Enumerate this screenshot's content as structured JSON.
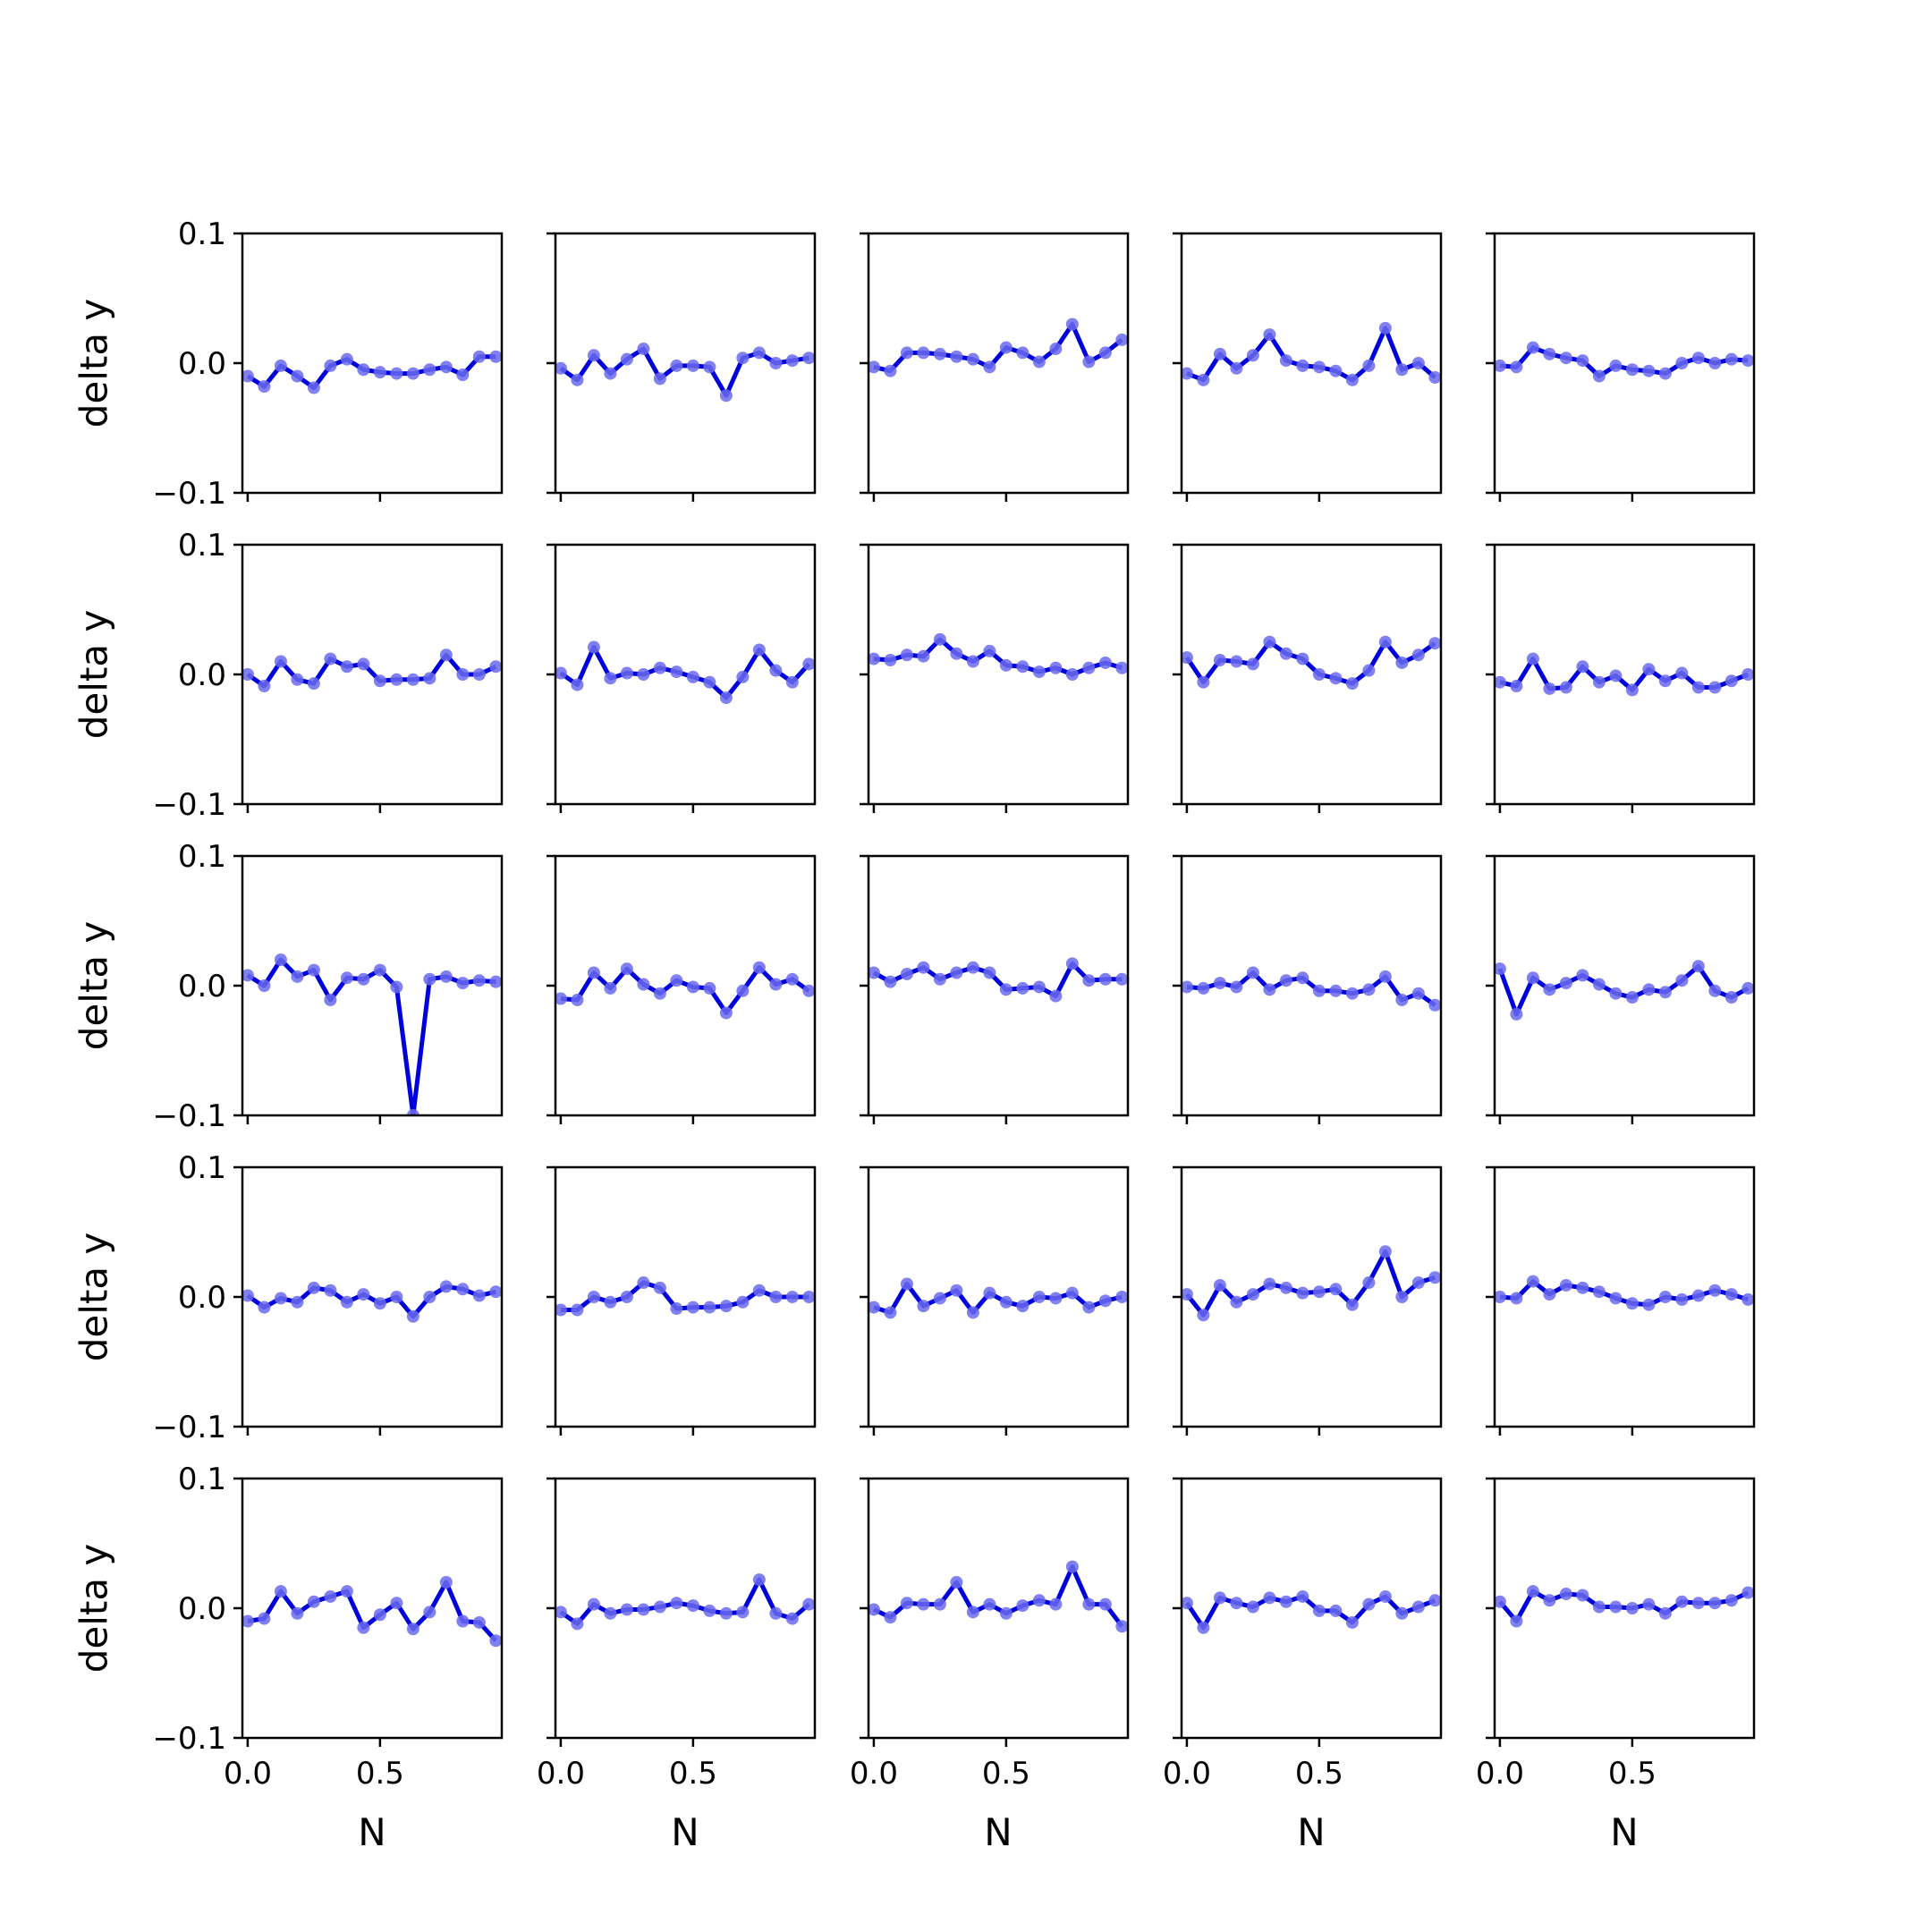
{
  "chart_data": {
    "type": "line",
    "layout": "5x5 grid of small multiples",
    "xlabel": "N",
    "ylabel": "delta y",
    "xlim": [
      -0.02,
      0.96
    ],
    "ylim": [
      -0.1,
      0.1
    ],
    "xticks": [
      0.0,
      0.5
    ],
    "xtick_labels": [
      "0.0",
      "0.5"
    ],
    "yticks": [
      -0.1,
      0.0,
      0.1
    ],
    "ytick_labels": [
      "−0.1",
      "0.0",
      "0.1"
    ],
    "grid": false,
    "line_color": "#0000dd",
    "marker_color": "#6a6aee",
    "x": [
      0.0,
      0.0625,
      0.125,
      0.1875,
      0.25,
      0.3125,
      0.375,
      0.4375,
      0.5,
      0.5625,
      0.625,
      0.6875,
      0.75,
      0.8125,
      0.875,
      0.9375
    ],
    "panels": [
      [
        -0.01,
        -0.018,
        -0.002,
        -0.01,
        -0.019,
        -0.002,
        0.003,
        -0.005,
        -0.007,
        -0.008,
        -0.008,
        -0.005,
        -0.003,
        -0.009,
        0.005,
        0.005
      ],
      [
        -0.004,
        -0.013,
        0.006,
        -0.008,
        0.003,
        0.011,
        -0.012,
        -0.002,
        -0.002,
        -0.003,
        -0.025,
        0.004,
        0.008,
        0.0,
        0.002,
        0.004
      ],
      [
        -0.003,
        -0.006,
        0.008,
        0.008,
        0.007,
        0.005,
        0.003,
        -0.003,
        0.012,
        0.008,
        0.001,
        0.011,
        0.03,
        0.001,
        0.008,
        0.018
      ],
      [
        -0.008,
        -0.013,
        0.007,
        -0.004,
        0.006,
        0.022,
        0.002,
        -0.002,
        -0.003,
        -0.006,
        -0.013,
        -0.002,
        0.027,
        -0.005,
        0.0,
        -0.011
      ],
      [
        -0.002,
        -0.003,
        0.012,
        0.007,
        0.004,
        0.002,
        -0.01,
        -0.002,
        -0.005,
        -0.006,
        -0.008,
        0.0,
        0.004,
        0.0,
        0.003,
        0.002
      ],
      [
        0.0,
        -0.009,
        0.01,
        -0.004,
        -0.007,
        0.012,
        0.006,
        0.008,
        -0.005,
        -0.004,
        -0.004,
        -0.003,
        0.015,
        0.0,
        0.0,
        0.006
      ],
      [
        0.001,
        -0.008,
        0.021,
        -0.003,
        0.001,
        0.0,
        0.005,
        0.002,
        -0.002,
        -0.006,
        -0.018,
        -0.002,
        0.019,
        0.003,
        -0.006,
        0.008
      ],
      [
        0.012,
        0.011,
        0.015,
        0.014,
        0.027,
        0.016,
        0.01,
        0.018,
        0.007,
        0.006,
        0.002,
        0.005,
        0.0,
        0.005,
        0.009,
        0.005
      ],
      [
        0.013,
        -0.006,
        0.011,
        0.01,
        0.008,
        0.025,
        0.016,
        0.012,
        0.0,
        -0.003,
        -0.007,
        0.003,
        0.025,
        0.009,
        0.015,
        0.024
      ],
      [
        -0.006,
        -0.009,
        0.012,
        -0.011,
        -0.01,
        0.006,
        -0.006,
        -0.001,
        -0.012,
        0.004,
        -0.005,
        0.001,
        -0.01,
        -0.01,
        -0.005,
        0.0
      ],
      [
        0.008,
        0.0,
        0.02,
        0.007,
        0.012,
        -0.011,
        0.006,
        0.005,
        0.012,
        -0.001,
        -0.1,
        0.005,
        0.007,
        0.002,
        0.004,
        0.003
      ],
      [
        -0.01,
        -0.011,
        0.01,
        -0.002,
        0.013,
        0.001,
        -0.006,
        0.004,
        -0.001,
        -0.002,
        -0.021,
        -0.004,
        0.014,
        0.001,
        0.005,
        -0.004
      ],
      [
        0.01,
        0.003,
        0.009,
        0.014,
        0.005,
        0.01,
        0.014,
        0.01,
        -0.003,
        -0.002,
        -0.001,
        -0.008,
        0.017,
        0.004,
        0.005,
        0.005
      ],
      [
        -0.001,
        -0.002,
        0.002,
        -0.001,
        0.01,
        -0.003,
        0.004,
        0.006,
        -0.004,
        -0.004,
        -0.006,
        -0.003,
        0.007,
        -0.011,
        -0.006,
        -0.015
      ],
      [
        0.013,
        -0.022,
        0.006,
        -0.003,
        0.002,
        0.008,
        0.001,
        -0.006,
        -0.009,
        -0.003,
        -0.005,
        0.004,
        0.015,
        -0.004,
        -0.009,
        -0.002
      ],
      [
        0.001,
        -0.008,
        -0.001,
        -0.004,
        0.007,
        0.005,
        -0.004,
        0.002,
        -0.005,
        0.0,
        -0.015,
        0.0,
        0.008,
        0.006,
        0.001,
        0.004
      ],
      [
        -0.01,
        -0.01,
        0.0,
        -0.004,
        0.0,
        0.011,
        0.007,
        -0.009,
        -0.008,
        -0.008,
        -0.007,
        -0.004,
        0.005,
        0.0,
        0.0,
        0.0
      ],
      [
        -0.008,
        -0.012,
        0.01,
        -0.007,
        -0.001,
        0.005,
        -0.012,
        0.003,
        -0.004,
        -0.007,
        0.0,
        -0.001,
        0.003,
        -0.008,
        -0.003,
        0.0
      ],
      [
        0.002,
        -0.014,
        0.009,
        -0.004,
        0.002,
        0.01,
        0.007,
        0.003,
        0.004,
        0.006,
        -0.006,
        0.011,
        0.035,
        0.0,
        0.011,
        0.015
      ],
      [
        0.0,
        -0.001,
        0.012,
        0.002,
        0.009,
        0.007,
        0.004,
        -0.001,
        -0.005,
        -0.006,
        0.0,
        -0.002,
        0.001,
        0.005,
        0.002,
        -0.002
      ],
      [
        -0.01,
        -0.008,
        0.013,
        -0.004,
        0.005,
        0.009,
        0.013,
        -0.015,
        -0.005,
        0.004,
        -0.016,
        -0.003,
        0.02,
        -0.01,
        -0.011,
        -0.025
      ],
      [
        -0.003,
        -0.012,
        0.003,
        -0.004,
        -0.001,
        -0.001,
        0.001,
        0.004,
        0.002,
        -0.002,
        -0.004,
        -0.003,
        0.022,
        -0.004,
        -0.008,
        0.003
      ],
      [
        -0.001,
        -0.007,
        0.004,
        0.003,
        0.003,
        0.02,
        -0.003,
        0.003,
        -0.004,
        0.002,
        0.006,
        0.003,
        0.032,
        0.003,
        0.003,
        -0.014
      ],
      [
        0.004,
        -0.015,
        0.008,
        0.004,
        0.001,
        0.008,
        0.005,
        0.009,
        -0.002,
        -0.002,
        -0.011,
        0.003,
        0.009,
        -0.004,
        0.001,
        0.006
      ],
      [
        0.005,
        -0.01,
        0.013,
        0.006,
        0.011,
        0.01,
        0.001,
        0.001,
        0.0,
        0.003,
        -0.004,
        0.005,
        0.004,
        0.004,
        0.006,
        0.012
      ]
    ]
  }
}
